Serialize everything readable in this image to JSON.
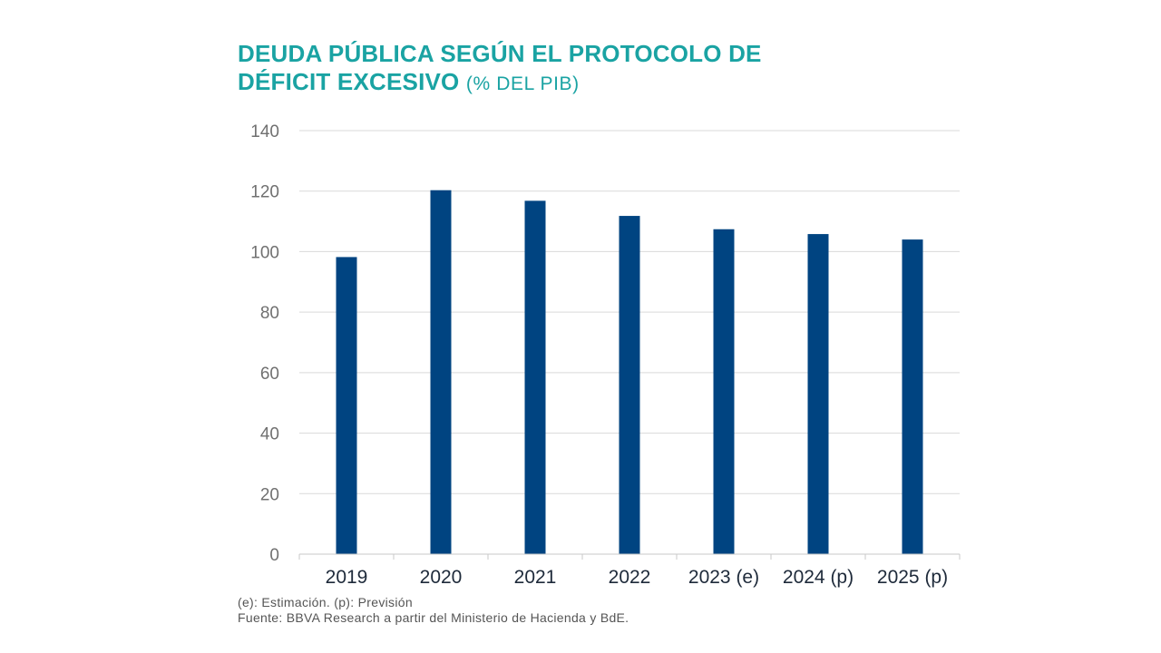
{
  "title": {
    "main_line1": "DEUDA PÚBLICA SEGÚN EL PROTOCOLO DE",
    "main_line2": "DÉFICIT EXCESIVO",
    "unit": "(% DEL PIB)"
  },
  "notes": {
    "abbrev": "(e): Estimación. (p): Previsión",
    "source": "Fuente: BBVA Research a partir del Ministerio de Hacienda y BdE."
  },
  "chart_data": {
    "type": "bar",
    "title": "DEUDA PÚBLICA SEGÚN EL PROTOCOLO DE DÉFICIT EXCESIVO (% DEL PIB)",
    "categories": [
      "2019",
      "2020",
      "2021",
      "2022",
      "2023 (e)",
      "2024 (p)",
      "2025 (p)"
    ],
    "values": [
      98.2,
      120.3,
      116.8,
      111.8,
      107.4,
      105.8,
      104.0
    ],
    "ylim": [
      0,
      140
    ],
    "yticks": [
      0,
      20,
      40,
      60,
      80,
      100,
      120,
      140
    ],
    "grid": true,
    "legend": "none",
    "bar_color": "#004481",
    "grid_color": "#d9d9d9",
    "axis_color": "#c8c8c8"
  }
}
